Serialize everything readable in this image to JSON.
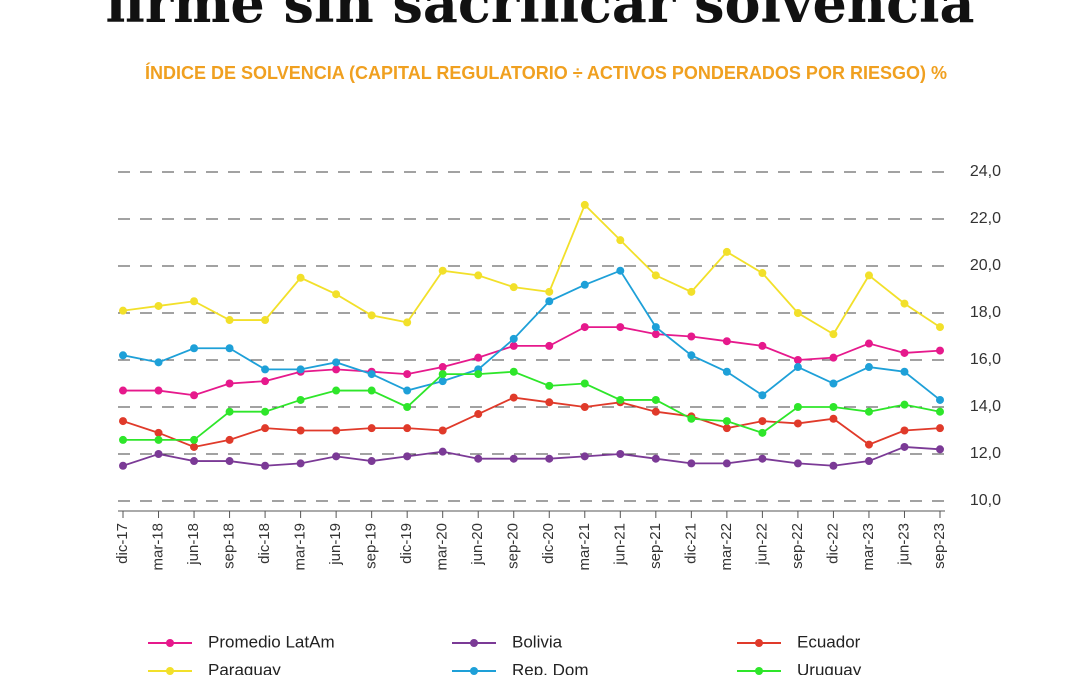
{
  "chart_data": {
    "type": "line",
    "title": "firme sin sacrificar solvencia",
    "subtitle": "ÍNDICE DE SOLVENCIA (CAPITAL REGULATORIO ÷ ACTIVOS PONDERADOS POR RIESGO) %",
    "categories": [
      "dic-17",
      "mar-18",
      "jun-18",
      "sep-18",
      "dic-18",
      "mar-19",
      "jun-19",
      "sep-19",
      "dic-19",
      "mar-20",
      "jun-20",
      "sep-20",
      "dic-20",
      "mar-21",
      "jun-21",
      "sep-21",
      "dic-21",
      "mar-22",
      "jun-22",
      "sep-22",
      "dic-22",
      "mar-23",
      "jun-23",
      "sep-23"
    ],
    "ylim": [
      10,
      24
    ],
    "yticks": [
      {
        "value": 10,
        "label": "10,0"
      },
      {
        "value": 12,
        "label": "12,0"
      },
      {
        "value": 14,
        "label": "14,0"
      },
      {
        "value": 16,
        "label": "16,0"
      },
      {
        "value": 18,
        "label": "18,0"
      },
      {
        "value": 20,
        "label": "20,0"
      },
      {
        "value": 22,
        "label": "22,0"
      },
      {
        "value": 24,
        "label": "24,0"
      }
    ],
    "grid": true,
    "series": [
      {
        "name": "Promedio LatAm",
        "color": "#e6198c",
        "values": [
          14.7,
          14.7,
          14.5,
          15.0,
          15.1,
          15.5,
          15.6,
          15.5,
          15.4,
          15.7,
          16.1,
          16.6,
          16.6,
          17.4,
          17.4,
          17.1,
          17.0,
          16.8,
          16.6,
          16.0,
          16.1,
          16.7,
          16.3,
          16.4
        ]
      },
      {
        "name": "Bolivia",
        "color": "#7b3a96",
        "values": [
          11.5,
          12.0,
          11.7,
          11.7,
          11.5,
          11.6,
          11.9,
          11.7,
          11.9,
          12.1,
          11.8,
          11.8,
          11.8,
          11.9,
          12.0,
          11.8,
          11.6,
          11.6,
          11.8,
          11.6,
          11.5,
          11.7,
          12.3,
          12.2
        ]
      },
      {
        "name": "Ecuador",
        "color": "#e03a2a",
        "values": [
          13.4,
          12.9,
          12.3,
          12.6,
          13.1,
          13.0,
          13.0,
          13.1,
          13.1,
          13.0,
          13.7,
          14.4,
          14.2,
          14.0,
          14.2,
          13.8,
          13.6,
          13.1,
          13.4,
          13.3,
          13.5,
          12.4,
          13.0,
          13.1
        ]
      },
      {
        "name": "Paraguay",
        "color": "#f2e02a",
        "values": [
          18.1,
          18.3,
          18.5,
          17.7,
          17.7,
          19.5,
          18.8,
          17.9,
          17.6,
          19.8,
          19.6,
          19.1,
          18.9,
          22.6,
          21.1,
          19.6,
          18.9,
          20.6,
          19.7,
          18.0,
          17.1,
          19.6,
          18.4,
          17.4
        ]
      },
      {
        "name": "Rep. Dom",
        "color": "#1ea0d8",
        "values": [
          16.2,
          15.9,
          16.5,
          16.5,
          15.6,
          15.6,
          15.9,
          15.4,
          14.7,
          15.1,
          15.6,
          16.9,
          18.5,
          19.2,
          19.8,
          17.4,
          16.2,
          15.5,
          14.5,
          15.7,
          15.0,
          15.7,
          15.5,
          14.3
        ]
      },
      {
        "name": "Uruguay",
        "color": "#2ee62a",
        "values": [
          12.6,
          12.6,
          12.6,
          13.8,
          13.8,
          14.3,
          14.7,
          14.7,
          14.0,
          15.4,
          15.4,
          15.5,
          14.9,
          15.0,
          14.3,
          14.3,
          13.5,
          13.4,
          12.9,
          14.0,
          14.0,
          13.8,
          14.1,
          13.8
        ]
      }
    ]
  }
}
